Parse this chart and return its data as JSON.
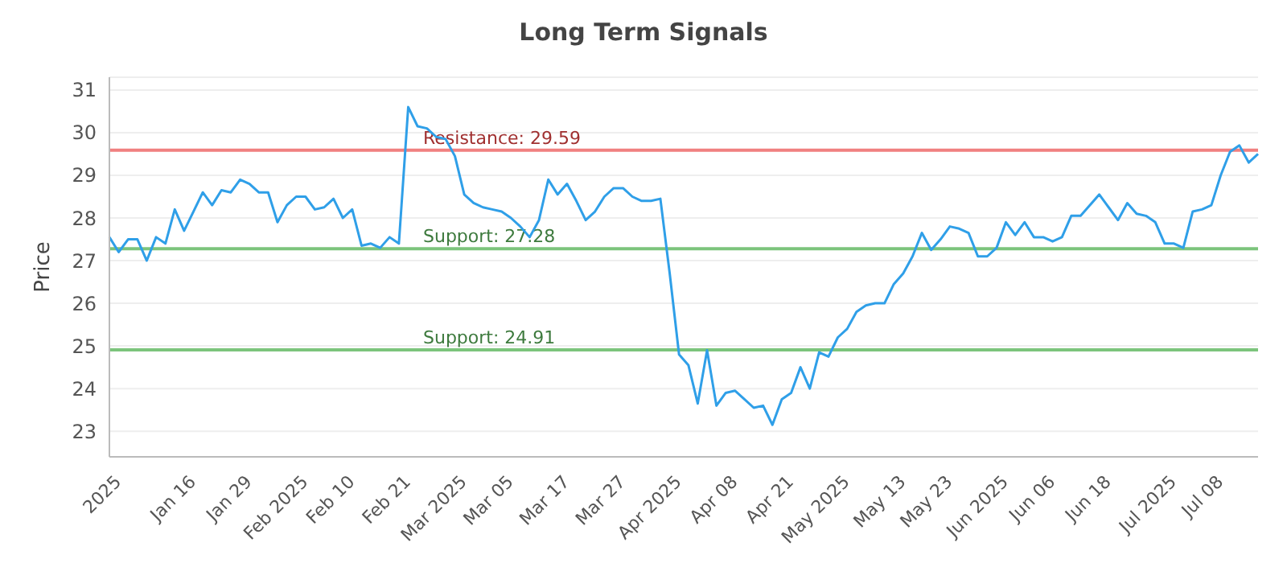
{
  "chart_data": {
    "type": "line",
    "title": "Long Term Signals",
    "ylabel": "Price",
    "categories": [
      null,
      "2025",
      null,
      null,
      null,
      null,
      null,
      null,
      null,
      "Jan 16",
      null,
      null,
      null,
      null,
      null,
      "Jan 29",
      null,
      null,
      null,
      null,
      null,
      "Feb 2025",
      null,
      null,
      null,
      null,
      "Feb 10",
      null,
      null,
      null,
      null,
      null,
      "Feb 21",
      null,
      null,
      null,
      null,
      null,
      "Mar 2025",
      null,
      null,
      null,
      null,
      "Mar 05",
      null,
      null,
      null,
      null,
      null,
      "Mar 17",
      null,
      null,
      null,
      null,
      null,
      "Mar 27",
      null,
      null,
      null,
      null,
      null,
      "Apr 2025",
      null,
      null,
      null,
      null,
      null,
      "Apr 08",
      null,
      null,
      null,
      null,
      null,
      "Apr 21",
      null,
      null,
      null,
      null,
      null,
      "May 2025",
      null,
      null,
      null,
      null,
      null,
      "May 13",
      null,
      null,
      null,
      null,
      "May 23",
      null,
      null,
      null,
      null,
      null,
      "Jun 2025",
      null,
      null,
      null,
      null,
      "Jun 06",
      null,
      null,
      null,
      null,
      null,
      "Jun 18",
      null,
      null,
      null,
      null,
      null,
      null,
      "Jul 2025",
      null,
      null,
      null,
      null,
      "Jul 08",
      null,
      null,
      null,
      null
    ],
    "series": [
      {
        "color": "#2f9fe8",
        "values": [
          27.55,
          27.2,
          27.5,
          27.5,
          27.0,
          27.55,
          27.4,
          28.2,
          27.7,
          28.15,
          28.6,
          28.3,
          28.65,
          28.6,
          28.9,
          28.8,
          28.6,
          28.6,
          27.9,
          28.3,
          28.5,
          28.5,
          28.2,
          28.25,
          28.45,
          28.0,
          28.2,
          27.35,
          27.4,
          27.3,
          27.55,
          27.4,
          30.6,
          30.15,
          30.1,
          29.9,
          29.85,
          29.45,
          28.55,
          28.35,
          28.25,
          28.2,
          28.15,
          28.0,
          27.8,
          27.55,
          27.95,
          28.9,
          28.55,
          28.8,
          28.4,
          27.95,
          28.15,
          28.5,
          28.7,
          28.7,
          28.5,
          28.4,
          28.4,
          28.45,
          26.7,
          24.8,
          24.55,
          23.65,
          24.9,
          23.6,
          23.9,
          23.95,
          23.75,
          23.55,
          23.6,
          23.15,
          23.75,
          23.9,
          24.5,
          24.0,
          24.85,
          24.75,
          25.2,
          25.4,
          25.8,
          25.95,
          26.0,
          26.0,
          26.45,
          26.7,
          27.1,
          27.65,
          27.25,
          27.5,
          27.8,
          27.75,
          27.65,
          27.1,
          27.1,
          27.3,
          27.9,
          27.6,
          27.9,
          27.55,
          27.55,
          27.45,
          27.55,
          28.05,
          28.05,
          28.3,
          28.55,
          28.25,
          27.95,
          28.35,
          28.1,
          28.05,
          27.9,
          27.4,
          27.4,
          27.3,
          28.15,
          28.2,
          28.3,
          29.0,
          29.55,
          29.7,
          29.3,
          29.5
        ]
      }
    ],
    "ylim": [
      22.4,
      31.3
    ],
    "yticks": [
      23,
      24,
      25,
      26,
      27,
      28,
      29,
      30,
      31
    ],
    "grid": "y",
    "legend": false,
    "marker": "none",
    "line_style": "solid",
    "ref_lines": [
      {
        "axis": "y",
        "value": 29.59,
        "label": "Resistance: 29.59",
        "color": "#f08080"
      },
      {
        "axis": "y",
        "value": 27.28,
        "label": "Support: 27.28",
        "color": "#7cc47c"
      },
      {
        "axis": "y",
        "value": 24.91,
        "label": "Support: 24.91",
        "color": "#7cc47c"
      }
    ]
  }
}
